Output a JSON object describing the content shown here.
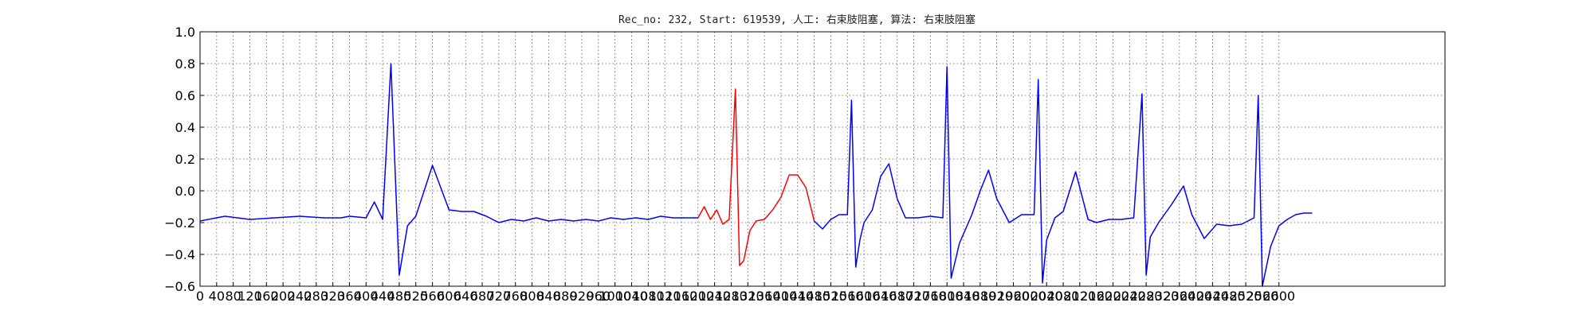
{
  "chart_data": {
    "type": "line",
    "title": "Rec_no: 232, Start: 619539, 人工: 右束肢阻塞, 算法: 右束肢阻塞",
    "xlim": [
      0,
      3000
    ],
    "ylim": [
      -0.6,
      1.0
    ],
    "grid": true,
    "y_ticks": [
      "1.0",
      "0.8",
      "0.6",
      "0.4",
      "0.2",
      "0.0",
      "−0.2",
      "−0.4",
      "−0.6"
    ],
    "x_ticks": [
      "0",
      "40",
      "80",
      "120",
      "160",
      "200",
      "240",
      "280",
      "320",
      "360",
      "400",
      "440",
      "480",
      "520",
      "560",
      "600",
      "640",
      "680",
      "720",
      "760",
      "800",
      "840",
      "880",
      "920",
      "960",
      "1000",
      "1040",
      "1080",
      "1120",
      "1160",
      "1200",
      "1240",
      "1280",
      "1320",
      "1360",
      "1400",
      "1440",
      "1480",
      "1520",
      "1560",
      "1600",
      "1640",
      "1680",
      "1720",
      "1760",
      "1800",
      "1840",
      "1880",
      "1920",
      "1960",
      "2000",
      "2040",
      "2080",
      "2120",
      "2160",
      "2200",
      "2240",
      "2280",
      "2320",
      "2360",
      "2400",
      "2440",
      "2480",
      "2520",
      "2560",
      "2600"
    ],
    "x_tick_values": [
      0,
      40,
      80,
      120,
      160,
      200,
      240,
      280,
      320,
      360,
      400,
      440,
      480,
      520,
      560,
      600,
      640,
      680,
      720,
      760,
      800,
      840,
      880,
      920,
      960,
      1000,
      1040,
      1080,
      1120,
      1160,
      1200,
      1240,
      1280,
      1320,
      1360,
      1400,
      1440,
      1480,
      1520,
      1560,
      1600,
      1640,
      1680,
      1720,
      1760,
      1800,
      1840,
      1880,
      1920,
      1960,
      2000,
      2040,
      2080,
      2120,
      2160,
      2200,
      2240,
      2280,
      2320,
      2360,
      2400,
      2440,
      2480,
      2520,
      2560,
      2600
    ],
    "series": [
      {
        "color": "#0000ff",
        "x": [
          0,
          60,
          120,
          180,
          240,
          300,
          340,
          360,
          400,
          420,
          440,
          460,
          480,
          500,
          520,
          540,
          560,
          600,
          630,
          660,
          690,
          720,
          750,
          780,
          810,
          840,
          870,
          900,
          930,
          960,
          990,
          1020,
          1050,
          1080,
          1110,
          1140,
          1170,
          1200
        ],
        "y": [
          -0.19,
          -0.16,
          -0.18,
          -0.17,
          -0.16,
          -0.17,
          -0.17,
          -0.16,
          -0.17,
          -0.07,
          -0.18,
          0.8,
          -0.53,
          -0.22,
          -0.16,
          0.0,
          0.16,
          -0.12,
          -0.13,
          -0.13,
          -0.16,
          -0.2,
          -0.18,
          -0.19,
          -0.17,
          -0.19,
          -0.18,
          -0.19,
          -0.18,
          -0.19,
          -0.17,
          -0.18,
          -0.17,
          -0.18,
          -0.16,
          -0.17,
          -0.17,
          -0.17
        ]
      },
      {
        "color": "#ff0000",
        "x": [
          1200,
          1215,
          1230,
          1245,
          1260,
          1275,
          1290,
          1300,
          1310,
          1325,
          1340,
          1360,
          1380,
          1400,
          1420,
          1440,
          1460,
          1480
        ],
        "y": [
          -0.17,
          -0.1,
          -0.18,
          -0.12,
          -0.21,
          -0.18,
          0.64,
          -0.47,
          -0.44,
          -0.25,
          -0.19,
          -0.18,
          -0.12,
          -0.04,
          0.1,
          0.1,
          0.02,
          -0.19
        ]
      },
      {
        "color": "#0000ff",
        "x": [
          1480,
          1500,
          1520,
          1540,
          1560,
          1570,
          1580,
          1590,
          1600,
          1620,
          1640,
          1660,
          1680,
          1700,
          1730,
          1760,
          1790,
          1800,
          1810,
          1830,
          1860,
          1880,
          1900,
          1920,
          1950,
          1980,
          2010,
          2020,
          2030,
          2040,
          2060,
          2080,
          2110,
          2140,
          2160,
          2190,
          2220,
          2250,
          2270,
          2280,
          2290,
          2310,
          2340,
          2370,
          2390,
          2420,
          2450,
          2480,
          2510,
          2540,
          2550,
          2560,
          2580,
          2600,
          2620,
          2640,
          2660,
          2680
        ],
        "y": [
          -0.19,
          -0.24,
          -0.18,
          -0.15,
          -0.15,
          0.57,
          -0.48,
          -0.31,
          -0.2,
          -0.12,
          0.09,
          0.17,
          -0.05,
          -0.17,
          -0.17,
          -0.16,
          -0.17,
          0.78,
          -0.55,
          -0.33,
          -0.15,
          0.0,
          0.13,
          -0.05,
          -0.2,
          -0.15,
          -0.15,
          0.7,
          -0.58,
          -0.31,
          -0.17,
          -0.13,
          0.12,
          -0.18,
          -0.2,
          -0.18,
          -0.18,
          -0.17,
          0.61,
          -0.53,
          -0.29,
          -0.2,
          -0.09,
          0.03,
          -0.15,
          -0.3,
          -0.21,
          -0.22,
          -0.21,
          -0.17,
          0.6,
          -0.6,
          -0.35,
          -0.22,
          -0.18,
          -0.15,
          -0.14,
          -0.14
        ]
      }
    ]
  }
}
